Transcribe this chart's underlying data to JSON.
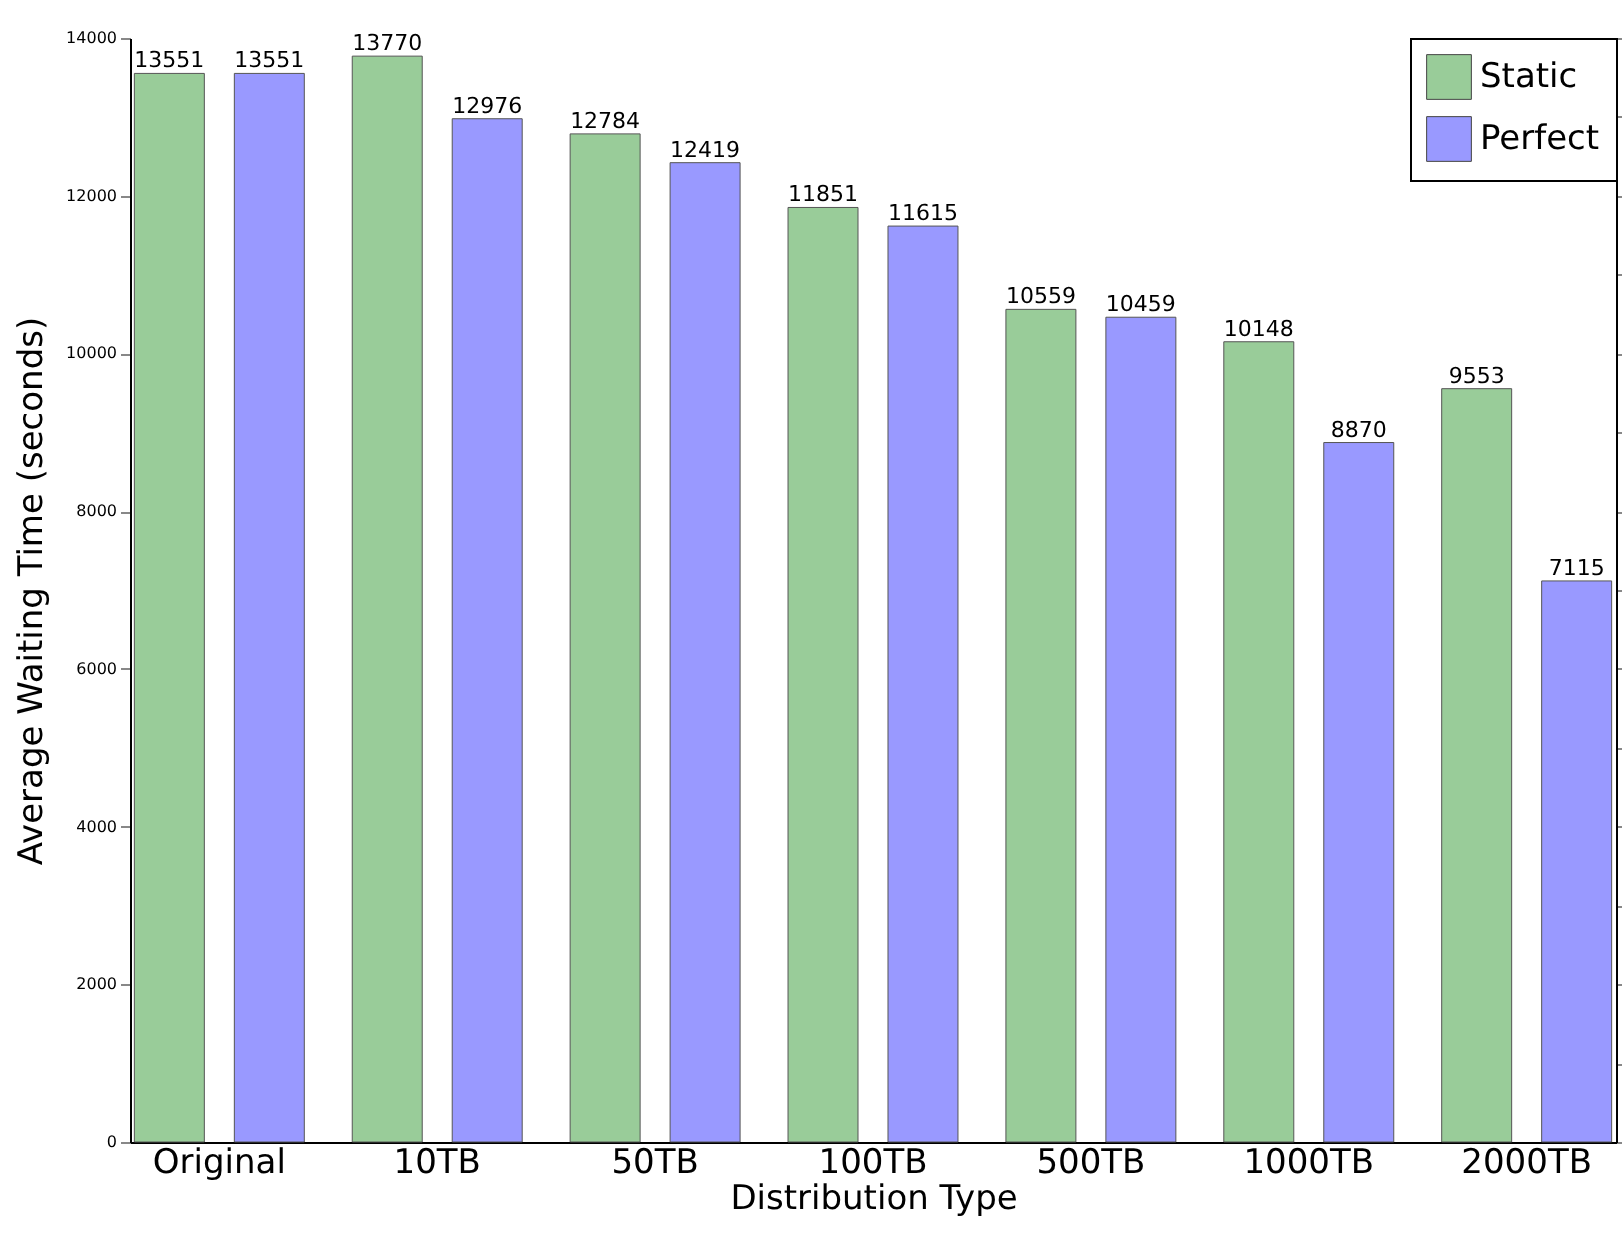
{
  "chart_data": {
    "type": "bar",
    "xlabel": "Distribution Type",
    "ylabel": "Average Waiting Time (seconds)",
    "categories": [
      "Original",
      "10TB",
      "50TB",
      "100TB",
      "500TB",
      "1000TB",
      "2000TB"
    ],
    "series": [
      {
        "name": "Static",
        "color": "#99cc99",
        "values": [
          13551,
          13770,
          12784,
          11851,
          10559,
          10148,
          9553
        ]
      },
      {
        "name": "Perfect",
        "color": "#9999ff",
        "values": [
          13551,
          12976,
          12419,
          11615,
          10459,
          8870,
          7115
        ]
      }
    ],
    "ylim": [
      0,
      14000
    ],
    "yticks": [
      0,
      2000,
      4000,
      6000,
      8000,
      10000,
      12000,
      14000
    ],
    "data_labels": true,
    "legend": "top right",
    "grid": false
  }
}
